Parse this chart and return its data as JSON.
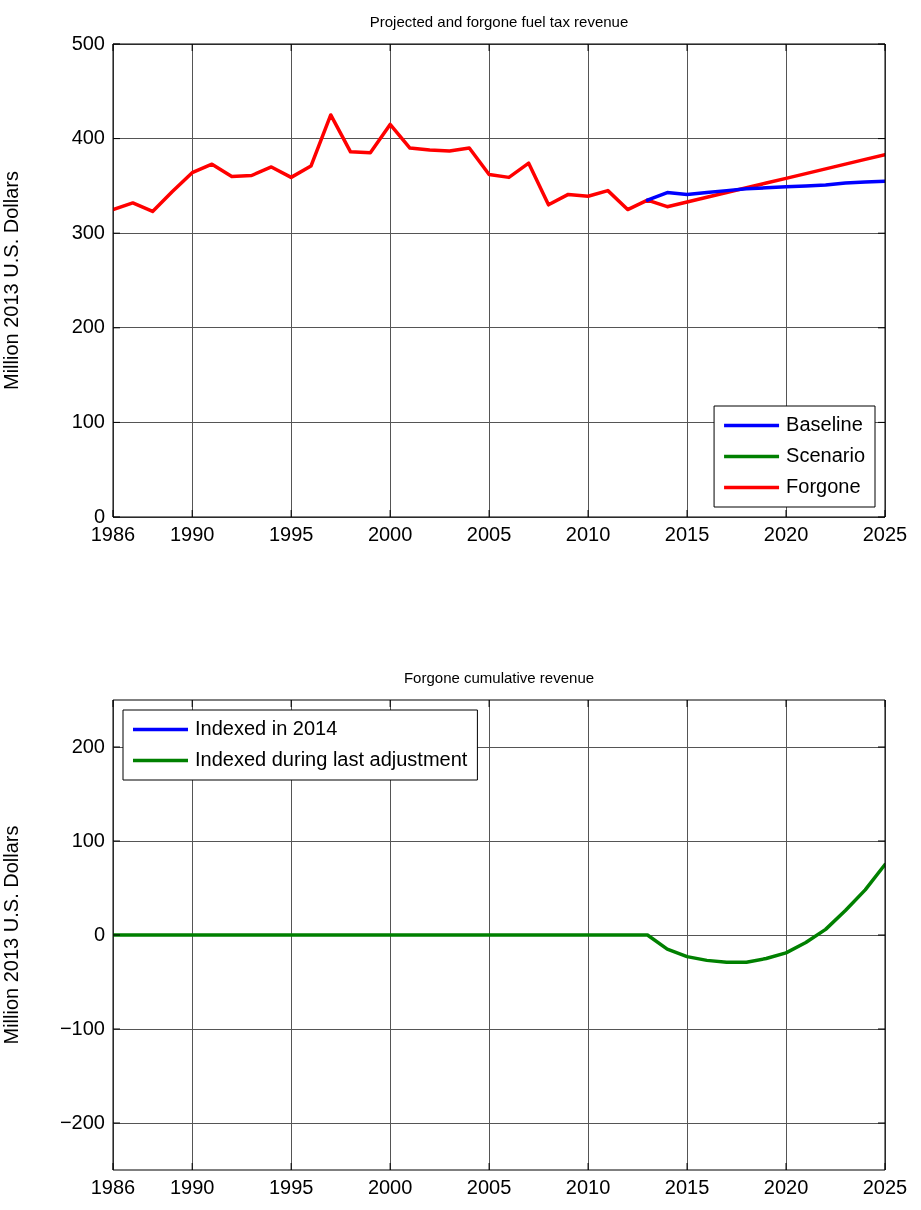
{
  "chart_data": [
    {
      "type": "line",
      "title": "Projected and forgone fuel tax revenue",
      "ylabel": "Million 2013 U.S. Dollars",
      "x": [
        1986,
        1987,
        1988,
        1989,
        1990,
        1991,
        1992,
        1993,
        1994,
        1995,
        1996,
        1997,
        1998,
        1999,
        2000,
        2001,
        2002,
        2003,
        2004,
        2005,
        2006,
        2007,
        2008,
        2009,
        2010,
        2011,
        2012,
        2013,
        2014,
        2015,
        2016,
        2017,
        2018,
        2019,
        2020,
        2021,
        2022,
        2023,
        2024,
        2025
      ],
      "series": [
        {
          "name": "Baseline",
          "color": "#0000ff",
          "values": [
            null,
            null,
            null,
            null,
            null,
            null,
            null,
            null,
            null,
            null,
            null,
            null,
            null,
            null,
            null,
            null,
            null,
            null,
            null,
            null,
            null,
            null,
            null,
            null,
            null,
            null,
            null,
            335,
            343,
            341,
            343,
            345,
            347,
            348,
            349,
            350,
            351,
            353,
            354,
            355
          ]
        },
        {
          "name": "Scenario",
          "color": "#008000",
          "values": [
            null,
            null,
            null,
            null,
            null,
            null,
            null,
            null,
            null,
            null,
            null,
            null,
            null,
            null,
            null,
            null,
            null,
            null,
            null,
            null,
            null,
            null,
            null,
            null,
            null,
            null,
            null,
            null,
            null,
            null,
            null,
            null,
            null,
            null,
            null,
            null,
            null,
            null,
            null,
            null
          ]
        },
        {
          "name": "Forgone",
          "color": "#ff0000",
          "values": [
            325,
            332,
            323,
            344,
            364,
            373,
            360,
            361,
            370,
            359,
            371,
            425,
            386,
            385,
            415,
            390,
            388,
            387,
            390,
            362,
            359,
            374,
            330,
            341,
            339,
            345,
            325,
            335,
            328,
            333,
            338,
            343,
            348,
            353,
            358,
            363,
            368,
            373,
            378,
            383
          ]
        }
      ],
      "xlim": [
        1986,
        2025
      ],
      "xticks": [
        1986,
        1990,
        1995,
        2000,
        2005,
        2010,
        2015,
        2020,
        2025
      ],
      "ylim": [
        0,
        500
      ],
      "yticks": [
        0,
        100,
        200,
        300,
        400,
        500
      ],
      "grid": true,
      "legend": "bottom right",
      "line_style": "solid",
      "marker": "none"
    },
    {
      "type": "line",
      "title": "Forgone cumulative revenue",
      "ylabel": "Million 2013 U.S. Dollars",
      "x": [
        1986,
        1987,
        1988,
        1989,
        1990,
        1991,
        1992,
        1993,
        1994,
        1995,
        1996,
        1997,
        1998,
        1999,
        2000,
        2001,
        2002,
        2003,
        2004,
        2005,
        2006,
        2007,
        2008,
        2009,
        2010,
        2011,
        2012,
        2013,
        2014,
        2015,
        2016,
        2017,
        2018,
        2019,
        2020,
        2021,
        2022,
        2023,
        2024,
        2025
      ],
      "series": [
        {
          "name": "Indexed in 2014",
          "color": "#0000ff",
          "values": [
            null,
            null,
            null,
            null,
            null,
            null,
            null,
            null,
            null,
            null,
            null,
            null,
            null,
            null,
            null,
            null,
            null,
            null,
            null,
            null,
            null,
            null,
            null,
            null,
            null,
            null,
            null,
            null,
            null,
            null,
            null,
            null,
            null,
            null,
            null,
            null,
            null,
            null,
            null,
            null
          ]
        },
        {
          "name": "Indexed during last adjustment",
          "color": "#008000",
          "values": [
            0,
            0,
            0,
            0,
            0,
            0,
            0,
            0,
            0,
            0,
            0,
            0,
            0,
            0,
            0,
            0,
            0,
            0,
            0,
            0,
            0,
            0,
            0,
            0,
            0,
            0,
            0,
            0,
            -15,
            -23,
            -27,
            -29,
            -29,
            -25,
            -19,
            -8,
            6,
            26,
            48,
            75
          ]
        }
      ],
      "xlim": [
        1986,
        2025
      ],
      "xticks": [
        1986,
        1990,
        1995,
        2000,
        2005,
        2010,
        2015,
        2020,
        2025
      ],
      "ylim": [
        -250,
        250
      ],
      "yticks": [
        -200,
        -100,
        0,
        100,
        200
      ],
      "grid": true,
      "legend": "top left",
      "line_style": "solid",
      "marker": "none"
    }
  ]
}
